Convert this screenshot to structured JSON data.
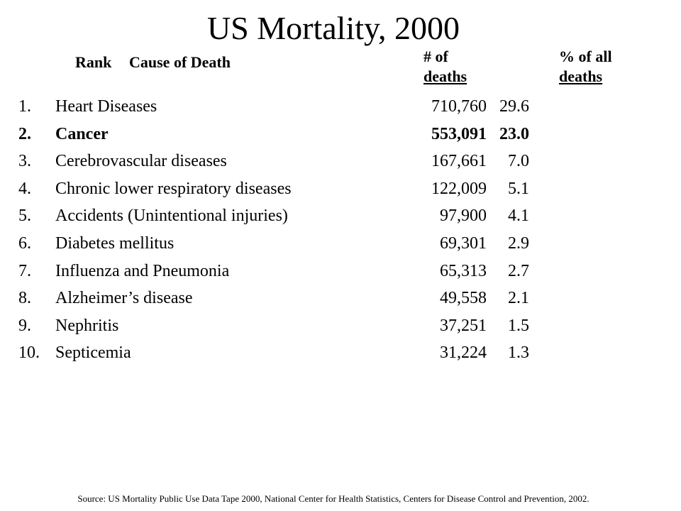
{
  "title": "US Mortality, 2000",
  "headers": {
    "rank": "Rank",
    "cause": "Cause of Death",
    "deaths_line1": "# of",
    "deaths_line2": "deaths",
    "percent_line1": "% of all",
    "percent_line2": "deaths"
  },
  "rows": [
    {
      "rank": "1.",
      "cause": "Heart Diseases",
      "deaths": "710,760",
      "percent": "29.6",
      "bold": false
    },
    {
      "rank": "2.",
      "cause": "Cancer",
      "deaths": "553,091",
      "percent": "23.0",
      "bold": true
    },
    {
      "rank": "3.",
      "cause": "Cerebrovascular diseases",
      "deaths": "167,661",
      "percent": "7.0",
      "bold": false
    },
    {
      "rank": "4.",
      "cause": "Chronic lower respiratory diseases",
      "deaths": "122,009",
      "percent": "5.1",
      "bold": false
    },
    {
      "rank": "5.",
      "cause": "Accidents (Unintentional injuries)",
      "deaths": "97,900",
      "percent": "4.1",
      "bold": false
    },
    {
      "rank": "6.",
      "cause": "Diabetes mellitus",
      "deaths": "69,301",
      "percent": "2.9",
      "bold": false
    },
    {
      "rank": "7.",
      "cause": "Influenza and Pneumonia",
      "deaths": "65,313",
      "percent": "2.7",
      "bold": false
    },
    {
      "rank": "8.",
      "cause": "Alzheimer’s disease",
      "deaths": "49,558",
      "percent": "2.1",
      "bold": false
    },
    {
      "rank": "9.",
      "cause": "Nephritis",
      "deaths": "37,251",
      "percent": "1.5",
      "bold": false
    },
    {
      "rank": "10.",
      "cause": "Septicemia",
      "deaths": "31,224",
      "percent": "1.3",
      "bold": false
    }
  ],
  "source": "Source: US Mortality Public Use Data Tape 2000, National Center for Health Statistics, Centers for Disease Control and Prevention, 2002."
}
